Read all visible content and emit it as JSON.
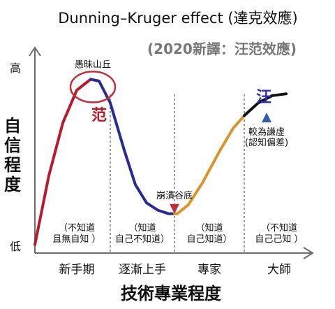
{
  "chart_data": {
    "type": "line",
    "title": "Dunning–Kruger effect (達克效應)",
    "subtitle": "(2020新譯：汪范效應)",
    "xlabel": "技術專業程度",
    "ylabel": "自信程度",
    "y_ticks": {
      "high": "高",
      "low": "低"
    },
    "xlim": [
      0,
      100
    ],
    "ylim": [
      0,
      100
    ],
    "x_categories": [
      "新手期",
      "逐漸上手",
      "專家",
      "大師"
    ],
    "stage_boundaries": [
      27,
      50,
      75
    ],
    "stage_notes": [
      [
        "（不知道",
        "且無自知 ）"
      ],
      [
        "（知道",
        "自己不知道）"
      ],
      [
        "（知道",
        "自己知道）"
      ],
      [
        "（不知道",
        "自己己知 ）"
      ]
    ],
    "curve": {
      "x": [
        0,
        5,
        10,
        15,
        20,
        23,
        27,
        32,
        36,
        40,
        44,
        48,
        51,
        55,
        60,
        66,
        71,
        75,
        80,
        85,
        90
      ],
      "y": [
        0,
        38,
        67,
        85,
        91,
        90,
        78,
        52,
        33,
        23,
        19,
        17,
        17,
        22,
        34,
        51,
        64,
        71,
        78,
        82,
        83
      ]
    },
    "series": [
      {
        "name": "范",
        "x_range": [
          0,
          20
        ],
        "color": "#b71c2c"
      },
      {
        "x_range": [
          20,
          50
        ],
        "color": "#2a2a8f"
      },
      {
        "x_range": [
          50,
          75
        ],
        "color": "#d8952c"
      },
      {
        "name": "汪",
        "x_range": [
          75,
          90
        ],
        "color": "#111111"
      }
    ],
    "annotations": {
      "peak": {
        "label": "愚昧山丘",
        "x": 20,
        "y": 91,
        "color": "#c0303a"
      },
      "valley": {
        "label": "崩潰谷底",
        "x": 50,
        "y": 17,
        "color": "#c0303a"
      },
      "plateau": {
        "label_lines": [
          "較為謙虛",
          "(認知偏差)"
        ],
        "x": 83,
        "y": 70,
        "color": "#2f5fb3"
      }
    },
    "grid": false
  }
}
